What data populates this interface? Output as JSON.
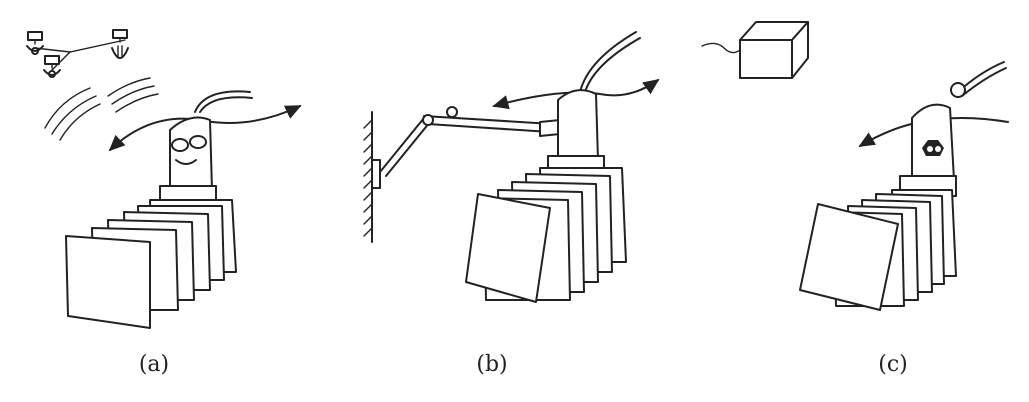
{
  "panels": [
    {
      "id": "a",
      "label": "(a)"
    },
    {
      "id": "b",
      "label": "(b)"
    },
    {
      "id": "c",
      "label": "(c)"
    }
  ]
}
